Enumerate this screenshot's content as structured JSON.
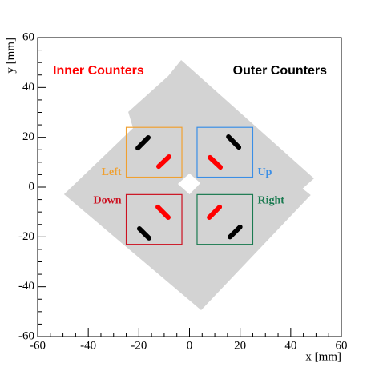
{
  "chart_data": {
    "type": "schematic",
    "xlabel": "x [mm]",
    "ylabel": "y [mm]",
    "xlim": [
      -60,
      60
    ],
    "ylim": [
      -60,
      60
    ],
    "xticks": [
      -60,
      -40,
      -20,
      0,
      20,
      40,
      60
    ],
    "yticks": [
      -60,
      -40,
      -20,
      0,
      20,
      40,
      60
    ],
    "xminorticks": [
      -55,
      -50,
      -45,
      -35,
      -30,
      -25,
      -15,
      -10,
      -5,
      5,
      10,
      15,
      25,
      30,
      35,
      45,
      50,
      55
    ],
    "yminorticks": [
      -55,
      -50,
      -45,
      -35,
      -30,
      -25,
      -15,
      -10,
      -5,
      5,
      10,
      15,
      25,
      30,
      35,
      45,
      50,
      55
    ],
    "support": {
      "color": "#d3d3d3",
      "outline": [
        [
          -3.3,
          51
        ],
        [
          49.2,
          3.5
        ],
        [
          44.7,
          -0.6
        ],
        [
          47.9,
          -3.2
        ],
        [
          4.6,
          -49.4
        ],
        [
          -49.6,
          -2.9
        ],
        [
          -22.3,
          23.7
        ],
        [
          -24.2,
          30.2
        ],
        [
          -8.4,
          44.6
        ]
      ],
      "hole": [
        [
          0,
          5.5
        ],
        [
          4.3,
          1.6
        ],
        [
          0,
          -2.9
        ],
        [
          -4.6,
          1.3
        ]
      ]
    },
    "regions": [
      {
        "name": "Left",
        "color": "#f0a030",
        "x": [
          -25,
          -3
        ],
        "y": [
          4,
          24
        ]
      },
      {
        "name": "Up",
        "color": "#3a8ee6",
        "x": [
          3,
          25
        ],
        "y": [
          4,
          24
        ]
      },
      {
        "name": "Down",
        "color": "#cc1020",
        "x": [
          -25,
          -3
        ],
        "y": [
          -23,
          -3
        ]
      },
      {
        "name": "Right",
        "color": "#1a7a50",
        "x": [
          3,
          25
        ],
        "y": [
          -23,
          -3
        ]
      }
    ],
    "series": [
      {
        "name": "Inner Counters",
        "color": "#ff0000",
        "segments": [
          [
            -12.2,
            8.3,
            -8.1,
            12.2
          ],
          [
            8.1,
            11.9,
            12.2,
            8
          ],
          [
            -12.5,
            -8,
            -8.4,
            -12.2
          ],
          [
            7.8,
            -12.2,
            11.9,
            -8
          ]
        ]
      },
      {
        "name": "Outer Counters",
        "color": "#000000",
        "segments": [
          [
            -20.4,
            15.7,
            -16.3,
            19.9
          ],
          [
            15.4,
            20.2,
            19.5,
            16
          ],
          [
            -19.8,
            -16.7,
            -16,
            -20.5
          ],
          [
            16,
            -20,
            20,
            -16
          ]
        ]
      }
    ]
  }
}
